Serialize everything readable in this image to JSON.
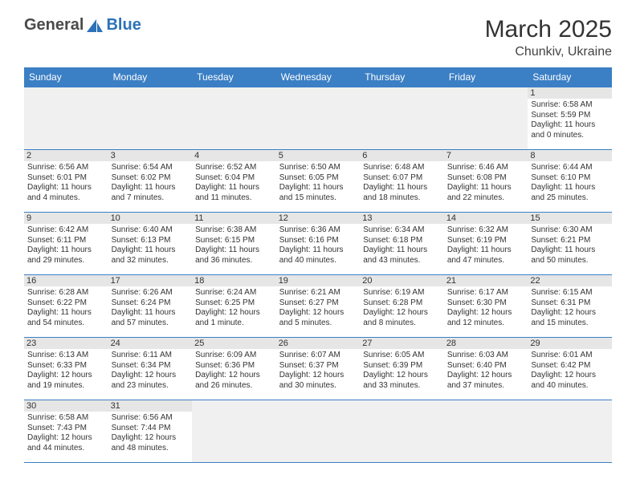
{
  "brand": {
    "part1": "General",
    "part2": "Blue"
  },
  "header": {
    "title": "March 2025",
    "location": "Chunkiv, Ukraine"
  },
  "colors": {
    "header_bg": "#3b7fc4",
    "header_text": "#ffffff",
    "daynum_bg": "#e6e6e6",
    "border": "#3b7fc4",
    "blank_bg": "#f0f0f0",
    "text": "#333333",
    "logo_gray": "#4a4a4a",
    "logo_blue": "#2d72b8"
  },
  "day_names": [
    "Sunday",
    "Monday",
    "Tuesday",
    "Wednesday",
    "Thursday",
    "Friday",
    "Saturday"
  ],
  "weeks": [
    [
      {
        "blank": true
      },
      {
        "blank": true
      },
      {
        "blank": true
      },
      {
        "blank": true
      },
      {
        "blank": true
      },
      {
        "blank": true
      },
      {
        "n": "1",
        "sr": "Sunrise: 6:58 AM",
        "ss": "Sunset: 5:59 PM",
        "d1": "Daylight: 11 hours",
        "d2": "and 0 minutes."
      }
    ],
    [
      {
        "n": "2",
        "sr": "Sunrise: 6:56 AM",
        "ss": "Sunset: 6:01 PM",
        "d1": "Daylight: 11 hours",
        "d2": "and 4 minutes."
      },
      {
        "n": "3",
        "sr": "Sunrise: 6:54 AM",
        "ss": "Sunset: 6:02 PM",
        "d1": "Daylight: 11 hours",
        "d2": "and 7 minutes."
      },
      {
        "n": "4",
        "sr": "Sunrise: 6:52 AM",
        "ss": "Sunset: 6:04 PM",
        "d1": "Daylight: 11 hours",
        "d2": "and 11 minutes."
      },
      {
        "n": "5",
        "sr": "Sunrise: 6:50 AM",
        "ss": "Sunset: 6:05 PM",
        "d1": "Daylight: 11 hours",
        "d2": "and 15 minutes."
      },
      {
        "n": "6",
        "sr": "Sunrise: 6:48 AM",
        "ss": "Sunset: 6:07 PM",
        "d1": "Daylight: 11 hours",
        "d2": "and 18 minutes."
      },
      {
        "n": "7",
        "sr": "Sunrise: 6:46 AM",
        "ss": "Sunset: 6:08 PM",
        "d1": "Daylight: 11 hours",
        "d2": "and 22 minutes."
      },
      {
        "n": "8",
        "sr": "Sunrise: 6:44 AM",
        "ss": "Sunset: 6:10 PM",
        "d1": "Daylight: 11 hours",
        "d2": "and 25 minutes."
      }
    ],
    [
      {
        "n": "9",
        "sr": "Sunrise: 6:42 AM",
        "ss": "Sunset: 6:11 PM",
        "d1": "Daylight: 11 hours",
        "d2": "and 29 minutes."
      },
      {
        "n": "10",
        "sr": "Sunrise: 6:40 AM",
        "ss": "Sunset: 6:13 PM",
        "d1": "Daylight: 11 hours",
        "d2": "and 32 minutes."
      },
      {
        "n": "11",
        "sr": "Sunrise: 6:38 AM",
        "ss": "Sunset: 6:15 PM",
        "d1": "Daylight: 11 hours",
        "d2": "and 36 minutes."
      },
      {
        "n": "12",
        "sr": "Sunrise: 6:36 AM",
        "ss": "Sunset: 6:16 PM",
        "d1": "Daylight: 11 hours",
        "d2": "and 40 minutes."
      },
      {
        "n": "13",
        "sr": "Sunrise: 6:34 AM",
        "ss": "Sunset: 6:18 PM",
        "d1": "Daylight: 11 hours",
        "d2": "and 43 minutes."
      },
      {
        "n": "14",
        "sr": "Sunrise: 6:32 AM",
        "ss": "Sunset: 6:19 PM",
        "d1": "Daylight: 11 hours",
        "d2": "and 47 minutes."
      },
      {
        "n": "15",
        "sr": "Sunrise: 6:30 AM",
        "ss": "Sunset: 6:21 PM",
        "d1": "Daylight: 11 hours",
        "d2": "and 50 minutes."
      }
    ],
    [
      {
        "n": "16",
        "sr": "Sunrise: 6:28 AM",
        "ss": "Sunset: 6:22 PM",
        "d1": "Daylight: 11 hours",
        "d2": "and 54 minutes."
      },
      {
        "n": "17",
        "sr": "Sunrise: 6:26 AM",
        "ss": "Sunset: 6:24 PM",
        "d1": "Daylight: 11 hours",
        "d2": "and 57 minutes."
      },
      {
        "n": "18",
        "sr": "Sunrise: 6:24 AM",
        "ss": "Sunset: 6:25 PM",
        "d1": "Daylight: 12 hours",
        "d2": "and 1 minute."
      },
      {
        "n": "19",
        "sr": "Sunrise: 6:21 AM",
        "ss": "Sunset: 6:27 PM",
        "d1": "Daylight: 12 hours",
        "d2": "and 5 minutes."
      },
      {
        "n": "20",
        "sr": "Sunrise: 6:19 AM",
        "ss": "Sunset: 6:28 PM",
        "d1": "Daylight: 12 hours",
        "d2": "and 8 minutes."
      },
      {
        "n": "21",
        "sr": "Sunrise: 6:17 AM",
        "ss": "Sunset: 6:30 PM",
        "d1": "Daylight: 12 hours",
        "d2": "and 12 minutes."
      },
      {
        "n": "22",
        "sr": "Sunrise: 6:15 AM",
        "ss": "Sunset: 6:31 PM",
        "d1": "Daylight: 12 hours",
        "d2": "and 15 minutes."
      }
    ],
    [
      {
        "n": "23",
        "sr": "Sunrise: 6:13 AM",
        "ss": "Sunset: 6:33 PM",
        "d1": "Daylight: 12 hours",
        "d2": "and 19 minutes."
      },
      {
        "n": "24",
        "sr": "Sunrise: 6:11 AM",
        "ss": "Sunset: 6:34 PM",
        "d1": "Daylight: 12 hours",
        "d2": "and 23 minutes."
      },
      {
        "n": "25",
        "sr": "Sunrise: 6:09 AM",
        "ss": "Sunset: 6:36 PM",
        "d1": "Daylight: 12 hours",
        "d2": "and 26 minutes."
      },
      {
        "n": "26",
        "sr": "Sunrise: 6:07 AM",
        "ss": "Sunset: 6:37 PM",
        "d1": "Daylight: 12 hours",
        "d2": "and 30 minutes."
      },
      {
        "n": "27",
        "sr": "Sunrise: 6:05 AM",
        "ss": "Sunset: 6:39 PM",
        "d1": "Daylight: 12 hours",
        "d2": "and 33 minutes."
      },
      {
        "n": "28",
        "sr": "Sunrise: 6:03 AM",
        "ss": "Sunset: 6:40 PM",
        "d1": "Daylight: 12 hours",
        "d2": "and 37 minutes."
      },
      {
        "n": "29",
        "sr": "Sunrise: 6:01 AM",
        "ss": "Sunset: 6:42 PM",
        "d1": "Daylight: 12 hours",
        "d2": "and 40 minutes."
      }
    ],
    [
      {
        "n": "30",
        "sr": "Sunrise: 6:58 AM",
        "ss": "Sunset: 7:43 PM",
        "d1": "Daylight: 12 hours",
        "d2": "and 44 minutes."
      },
      {
        "n": "31",
        "sr": "Sunrise: 6:56 AM",
        "ss": "Sunset: 7:44 PM",
        "d1": "Daylight: 12 hours",
        "d2": "and 48 minutes."
      },
      {
        "blank": true
      },
      {
        "blank": true
      },
      {
        "blank": true
      },
      {
        "blank": true
      },
      {
        "blank": true
      }
    ]
  ]
}
